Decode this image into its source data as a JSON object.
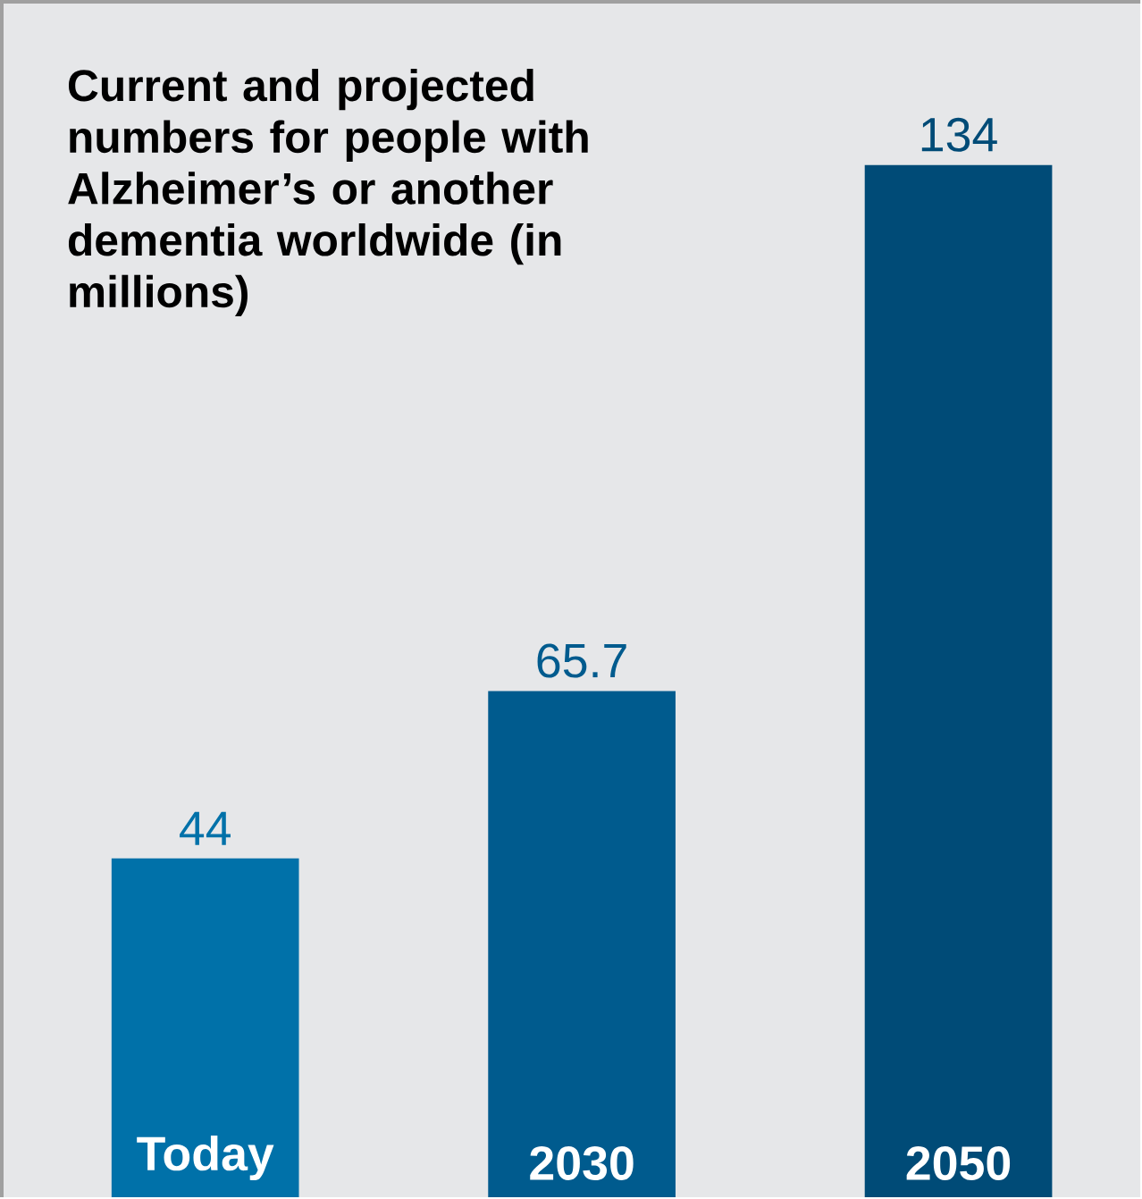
{
  "chart_data": {
    "type": "bar",
    "title": "Current and projected numbers for people with Alzheimer’s or another dementia worldwide (in millions)",
    "categories": [
      "Today",
      "2030",
      "2050"
    ],
    "values": [
      44,
      65.7,
      134
    ],
    "colors": [
      "#0071a9",
      "#005b8e",
      "#004b77"
    ],
    "data_labels": true
  }
}
